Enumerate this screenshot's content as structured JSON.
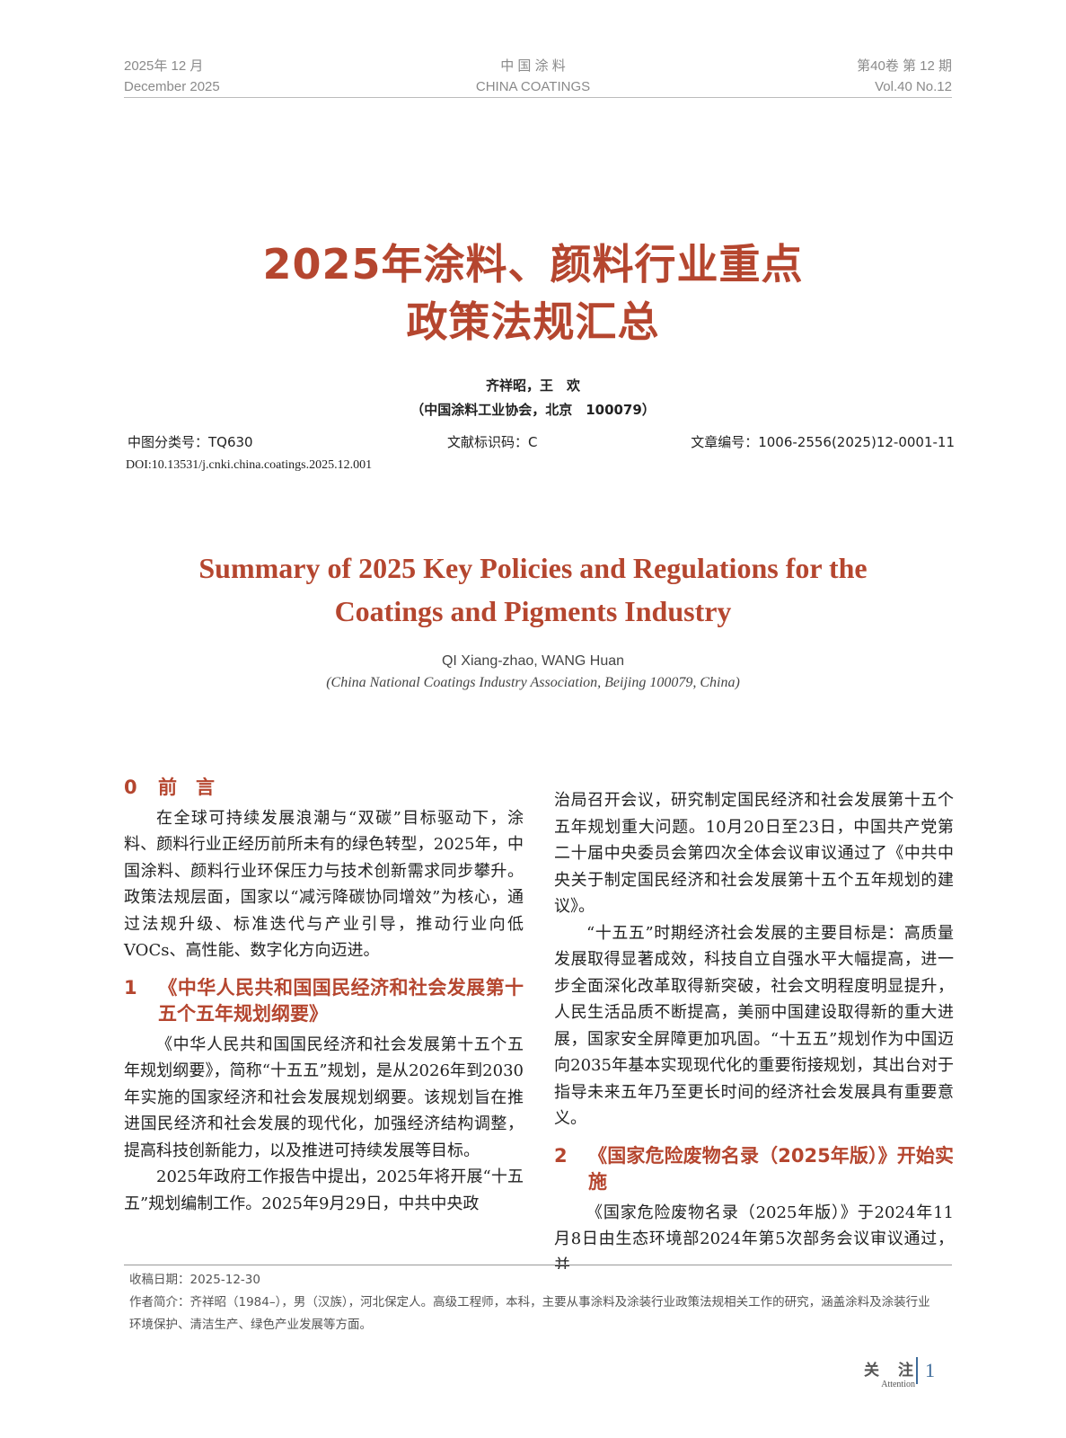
{
  "header": {
    "date_cn": "2025年 12 月",
    "date_en": "December 2025",
    "journal_cn": "中 国 涂 料",
    "journal_en": "CHINA COATINGS",
    "vol_cn": "第40卷  第 12 期",
    "vol_en": "Vol.40  No.12"
  },
  "title_cn": [
    "2025年涂料、颜料行业重点",
    "政策法规汇总"
  ],
  "authors_cn": "齐祥昭，王　欢",
  "affiliation_cn": "（中国涂料工业协会，北京　100079）",
  "meta": {
    "clc": "中图分类号：TQ630",
    "doc_code": "文献标识码：C",
    "article_no": "文章编号：1006-2556(2025)12-0001-11",
    "doi": "DOI:10.13531/j.cnki.china.coatings.2025.12.001"
  },
  "title_en": [
    "Summary of 2025 Key Policies and Regulations for the",
    "Coatings and Pigments Industry"
  ],
  "authors_en": "QI Xiang-zhao, WANG Huan",
  "affiliation_en": "(China National Coatings Industry Association, Beijing 100079, China)",
  "sections": {
    "s0": {
      "num": "0",
      "title": "前　言",
      "p1": "在全球可持续发展浪潮与“双碳”目标驱动下，涂料、颜料行业正经历前所未有的绿色转型，2025年，中国涂料、颜料行业环保压力与技术创新需求同步攀升。政策法规层面，国家以“减污降碳协同增效”为核心，通过法规升级、标准迭代与产业引导，推动行业向低VOCs、高性能、数字化方向迈进。"
    },
    "s1": {
      "num": "1",
      "title": "《中华人民共和国国民经济和社会发展第十五个五年规划纲要》",
      "p1": "《中华人民共和国国民经济和社会发展第十五个五年规划纲要》，简称“十五五”规划，是从2026年到2030年实施的国家经济和社会发展规划纲要。该规划旨在推进国民经济和社会发展的现代化，加强经济结构调整，提高科技创新能力，以及推进可持续发展等目标。",
      "p2": "2025年政府工作报告中提出，2025年将开展“十五五”规划编制工作。2025年9月29日，中共中央政",
      "p2_cont": "治局召开会议，研究制定国民经济和社会发展第十五个五年规划重大问题。10月20日至23日，中国共产党第二十届中央委员会第四次全体会议审议通过了《中共中央关于制定国民经济和社会发展第十五个五年规划的建议》。",
      "p3": "“十五五”时期经济社会发展的主要目标是：高质量发展取得显著成效，科技自立自强水平大幅提高，进一步全面深化改革取得新突破，社会文明程度明显提升，人民生活品质不断提高，美丽中国建设取得新的重大进展，国家安全屏障更加巩固。“十五五”规划作为中国迈向2035年基本实现现代化的重要衔接规划，其出台对于指导未来五年乃至更长时间的经济社会发展具有重要意义。"
    },
    "s2": {
      "num": "2",
      "title": "《国家危险废物名录（2025年版）》开始实施",
      "p1": "《国家危险废物名录（2025年版）》于2024年11月8日由生态环境部2024年第5次部务会议审议通过，并"
    }
  },
  "footnote": {
    "received": "收稿日期：2025-12-30",
    "bio": "作者简介：齐祥昭（1984–），男（汉族），河北保定人。高级工程师，本科，主要从事涂料及涂装行业政策法规相关工作的研究，涵盖涂料及涂装行业环境保护、清洁生产、绿色产业发展等方面。"
  },
  "page_footer": {
    "column_cn": "关　注",
    "column_en": "Attention",
    "page": "1"
  }
}
